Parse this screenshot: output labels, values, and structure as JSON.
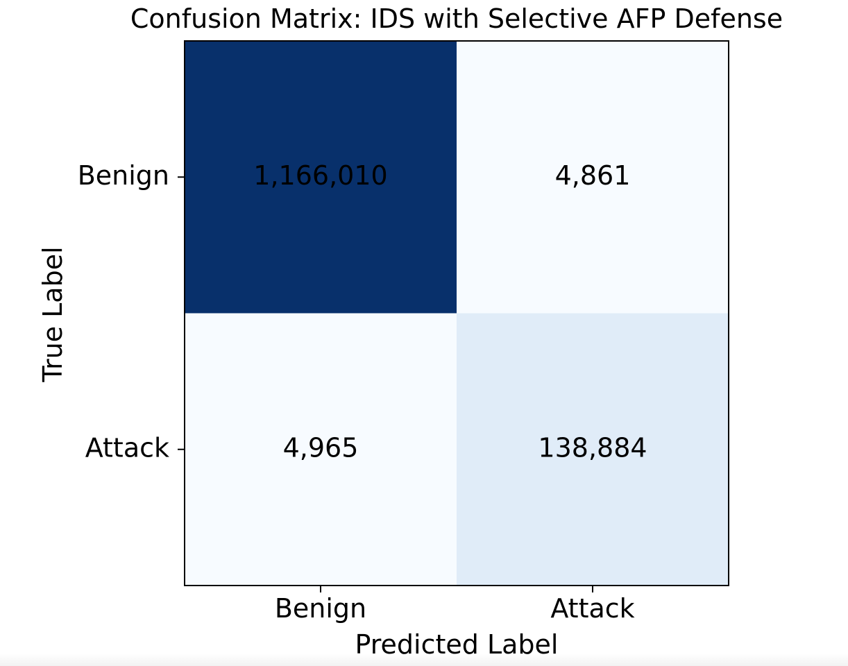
{
  "chart_data": {
    "type": "heatmap",
    "title": "Confusion Matrix: IDS with Selective AFP Defense",
    "xlabel": "Predicted Label",
    "ylabel": "True Label",
    "x_categories": [
      "Benign",
      "Attack"
    ],
    "y_categories": [
      "Benign",
      "Attack"
    ],
    "values": [
      [
        1166010,
        4861
      ],
      [
        4965,
        138884
      ]
    ],
    "labels": [
      [
        "1,166,010",
        "4,861"
      ],
      [
        "4,965",
        "138,884"
      ]
    ],
    "colormap": "Blues",
    "colors": {
      "low": "#f7fbff",
      "high": "#08306b",
      "text": "#000000",
      "frame": "#000000"
    },
    "grid": false,
    "legend": "none"
  }
}
